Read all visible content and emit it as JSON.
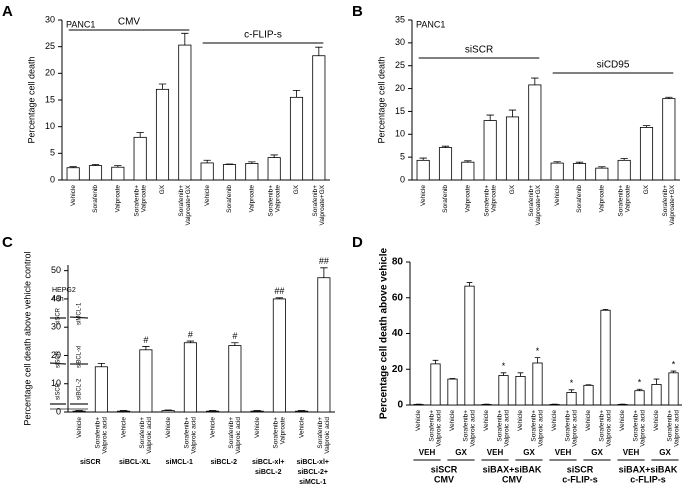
{
  "chart_data": [
    {
      "type": "bar",
      "panel": "A",
      "label": "PANC1",
      "y_label": "Percentage cell death",
      "color": "#ffffff",
      "categories": [
        [
          "Vehicle"
        ],
        [
          "Sorafenib"
        ],
        [
          "Valproate"
        ],
        [
          "Sorafenib+",
          "Valproate"
        ],
        [
          "GX"
        ],
        [
          "Sorafenib+",
          "Valproate+GX"
        ],
        [
          "Vehicle"
        ],
        [
          "Sorafenib"
        ],
        [
          "Valproate"
        ],
        [
          "Sorafenib+",
          "Valproate"
        ],
        [
          "GX"
        ],
        [
          "Sorafenib+",
          "Valproate+GX"
        ]
      ],
      "values": [
        2.3,
        2.7,
        2.4,
        8.0,
        17.0,
        25.3,
        3.2,
        2.9,
        3.1,
        4.2,
        15.5,
        23.3
      ],
      "errors": [
        0.2,
        0.2,
        0.3,
        0.9,
        1.0,
        2.2,
        0.5,
        0.1,
        0.3,
        0.5,
        1.3,
        1.6
      ],
      "brackets": [
        "CMV",
        "c-FLIP-s"
      ],
      "ylim": [
        0,
        30
      ],
      "yticks": [
        0,
        5,
        10,
        15,
        20,
        25,
        30
      ]
    },
    {
      "type": "bar",
      "panel": "B",
      "label": "PANC1",
      "y_label": "Percentage cell death",
      "color": "#ffffff",
      "categories": [
        [
          "Vehicle"
        ],
        [
          "Sorafenib"
        ],
        [
          "Valproate"
        ],
        [
          "Sorafenib+",
          "Valproate"
        ],
        [
          "GX"
        ],
        [
          "Sorafenib+",
          "Valproate+GX"
        ],
        [
          "Vehicle"
        ],
        [
          "Sorafenib"
        ],
        [
          "Valproate"
        ],
        [
          "Sorafenib+",
          "Valproate"
        ],
        [
          "GX"
        ],
        [
          "Sorafenib+",
          "Valproate+GX"
        ]
      ],
      "values": [
        4.3,
        7.1,
        3.9,
        13.0,
        13.8,
        20.8,
        3.7,
        3.6,
        2.6,
        4.3,
        11.5,
        17.8
      ],
      "errors": [
        0.5,
        0.3,
        0.3,
        1.2,
        1.5,
        1.5,
        0.3,
        0.3,
        0.3,
        0.4,
        0.4,
        0.3
      ],
      "brackets": [
        "siSCR",
        "siCD95"
      ],
      "ylim": [
        0,
        35
      ],
      "yticks": [
        0,
        5,
        10,
        15,
        20,
        25,
        30,
        35
      ]
    },
    {
      "type": "bar",
      "panel": "C",
      "y_label": "Percentage cell death above vehicle control",
      "color": "#ffffff",
      "inset": {
        "title": [
          "HEPG2",
          "48h"
        ],
        "labels": [
          "siSCR",
          "siMCL-1",
          "siSCR",
          "siBCL-xl",
          "siSCR",
          "siBCL-2"
        ]
      },
      "categories": [
        [
          "Vehicle"
        ],
        [
          "Sorafenib+",
          "Valproic acid"
        ],
        [
          "Vehicle"
        ],
        [
          "Sorafenib+",
          "Valproic acid"
        ],
        [
          "Vehicle"
        ],
        [
          "Sorafenib+",
          "Valproic acid"
        ],
        [
          "Vehicle"
        ],
        [
          "Sorafenib+",
          "Valproic acid"
        ],
        [
          "Vehicle"
        ],
        [
          "Sorafenib+",
          "Valproate"
        ],
        [
          "Vehicle"
        ],
        [
          "Sorafenib+",
          "Valproic acid"
        ]
      ],
      "values": [
        0.3,
        16,
        0.3,
        22,
        0.5,
        24.5,
        0.3,
        23.5,
        0.3,
        40,
        0.3,
        47.5
      ],
      "errors": [
        0.2,
        1.2,
        0.2,
        1.2,
        0.2,
        0.6,
        0.2,
        1.0,
        0.2,
        0.4,
        0.2,
        3.5
      ],
      "markers": [
        null,
        null,
        null,
        "#",
        null,
        "#",
        null,
        "#",
        null,
        "##",
        null,
        "##"
      ],
      "groups": [
        [
          "siSCR"
        ],
        [
          "siBCL-XL"
        ],
        [
          "siMCL-1"
        ],
        [
          "siBCL-2"
        ],
        [
          "siBCL-xl+",
          "siBCL-2"
        ],
        [
          "siBCL-xl+",
          "siBCL-2+",
          "siMCL-1"
        ]
      ],
      "ylim": [
        0,
        52
      ],
      "yticks": [
        0,
        10,
        20,
        30,
        40,
        50
      ]
    },
    {
      "type": "bar",
      "panel": "D",
      "y_label": "Percentage cell death above vehicle",
      "color": "#ffffff",
      "categories": [
        [
          "Vehicle"
        ],
        [
          "Sorafenib+",
          "Valproic acid"
        ],
        [
          "Vehicle"
        ],
        [
          "Sorafenib+",
          "Valproic acid"
        ],
        [
          "Vehicle"
        ],
        [
          "Sorafenib+",
          "Valproic acid"
        ],
        [
          "Vehicle"
        ],
        [
          "Sorafenib+",
          "Valproic acid"
        ],
        [
          "Vehicle"
        ],
        [
          "Sorafenib+",
          "Valproic acid"
        ],
        [
          "Vehicle"
        ],
        [
          "Sorafenib+",
          "Valproic acid"
        ],
        [
          "Vehicle"
        ],
        [
          "Sorafenib+",
          "Valproic acid"
        ],
        [
          "Vehicle"
        ],
        [
          "Sorafenib+",
          "Valproic acid"
        ]
      ],
      "values": [
        0.3,
        23,
        14.5,
        66.5,
        0.3,
        16.5,
        16,
        23.5,
        0.3,
        7,
        11,
        53,
        0.3,
        8,
        11.5,
        18
      ],
      "errors": [
        0.2,
        2,
        0.3,
        2,
        0.2,
        1.5,
        2,
        3,
        0.2,
        1.5,
        0.3,
        0.5,
        0.2,
        0.8,
        3,
        1
      ],
      "markers": [
        null,
        null,
        null,
        null,
        null,
        "*",
        null,
        "*",
        null,
        "*",
        null,
        null,
        null,
        "*",
        null,
        "*"
      ],
      "subgroups": [
        "VEH",
        "GX",
        "VEH",
        "GX",
        "VEH",
        "GX",
        "VEH",
        "GX"
      ],
      "groups": [
        [
          "siSCR",
          "CMV"
        ],
        [
          "siBAX+siBAK",
          "CMV"
        ],
        [
          "siSCR",
          "c-FLIP-s"
        ],
        [
          "siBAX+siBAK",
          "c-FLIP-s"
        ]
      ],
      "ylim": [
        0,
        80
      ],
      "yticks": [
        0,
        20,
        40,
        60,
        80
      ]
    }
  ]
}
